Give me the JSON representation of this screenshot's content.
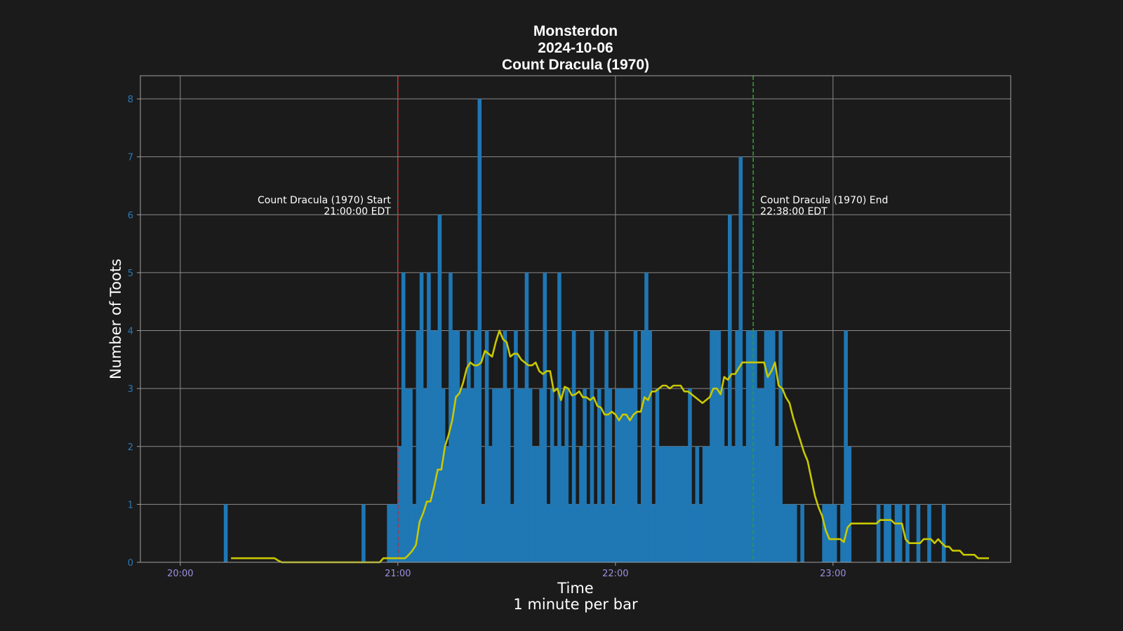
{
  "chart_data": {
    "type": "bar",
    "title": [
      "Monsterdon",
      "2024-10-06",
      "Count Dracula (1970)"
    ],
    "xlabel": "Time",
    "xlabel_sub": "1 minute per bar",
    "ylabel": "Number of Toots",
    "x_unit": "minute",
    "x_range": [
      "19:49",
      "23:49"
    ],
    "xlim_minutes": [
      -11,
      229
    ],
    "ylim": [
      0,
      8.4
    ],
    "x_ticks": [
      "20:00",
      "21:00",
      "22:00",
      "23:00"
    ],
    "y_ticks": [
      "0",
      "1",
      "2",
      "3",
      "4",
      "5",
      "6",
      "7",
      "8"
    ],
    "grid": true,
    "bars": {
      "start_time": "20:00",
      "values": [
        0,
        0,
        0,
        0,
        0,
        0,
        0,
        0,
        0,
        0,
        0,
        0,
        1,
        0,
        0,
        0,
        0,
        0,
        0,
        0,
        0,
        0,
        0,
        0,
        0,
        0,
        0,
        0,
        0,
        0,
        0,
        0,
        0,
        0,
        0,
        0,
        0,
        0,
        0,
        0,
        0,
        0,
        0,
        0,
        0,
        0,
        0,
        0,
        0,
        0,
        1,
        0,
        0,
        0,
        0,
        0,
        0,
        1,
        1,
        1,
        2,
        5,
        3,
        3,
        1,
        4,
        5,
        3,
        5,
        4,
        4,
        6,
        3,
        2,
        5,
        4,
        4,
        3,
        3,
        4,
        3,
        4,
        8,
        1,
        4,
        2,
        3,
        3,
        3,
        4,
        3,
        1,
        4,
        3,
        3,
        5,
        3,
        2,
        2,
        3,
        5,
        1,
        3,
        2,
        5,
        2,
        3,
        1,
        4,
        1,
        2,
        3,
        1,
        4,
        1,
        3,
        1,
        4,
        3,
        1,
        3,
        3,
        3,
        3,
        3,
        4,
        1,
        4,
        5,
        4,
        1,
        3,
        2,
        2,
        2,
        2,
        2,
        2,
        2,
        2,
        3,
        1,
        2,
        1,
        2,
        2,
        4,
        4,
        4,
        3,
        2,
        6,
        2,
        4,
        7,
        2,
        4,
        4,
        4,
        3,
        3,
        4,
        4,
        4,
        2,
        4,
        1,
        1,
        1,
        1,
        0,
        1,
        0,
        0,
        0,
        0,
        0,
        1,
        1,
        1,
        1,
        0,
        1,
        4,
        2,
        0,
        0,
        0,
        0,
        0,
        0,
        0,
        1,
        0,
        1,
        1,
        0,
        1,
        1,
        0,
        1,
        0,
        0,
        1,
        0,
        0,
        1,
        0,
        0,
        0,
        1,
        0,
        0,
        0,
        0,
        0,
        0,
        0,
        0,
        0,
        0,
        0,
        0,
        0,
        0,
        0,
        0,
        0,
        0
      ]
    },
    "rolling_average": {
      "color": "#c8c800",
      "start_time": "20:14",
      "values": [
        0.07,
        0.07,
        0.07,
        0.07,
        0.07,
        0.07,
        0.07,
        0.07,
        0.07,
        0.07,
        0.07,
        0.07,
        0.07,
        0.03,
        0,
        0,
        0,
        0,
        0,
        0,
        0,
        0,
        0,
        0,
        0,
        0,
        0,
        0,
        0,
        0,
        0,
        0,
        0,
        0,
        0,
        0,
        0,
        0,
        0,
        0,
        0,
        0,
        0.07,
        0.07,
        0.07,
        0.07,
        0.07,
        0.07,
        0.07,
        0.13,
        0.2,
        0.3,
        0.7,
        0.85,
        1.05,
        1.05,
        1.3,
        1.6,
        1.6,
        2,
        2.2,
        2.45,
        2.85,
        2.92,
        3.1,
        3.35,
        3.45,
        3.4,
        3.4,
        3.45,
        3.65,
        3.6,
        3.55,
        3.8,
        4,
        3.85,
        3.8,
        3.55,
        3.6,
        3.6,
        3.5,
        3.45,
        3.4,
        3.4,
        3.45,
        3.3,
        3.25,
        3.3,
        3.3,
        2.95,
        3,
        2.8,
        3.03,
        3,
        2.88,
        2.9,
        2.95,
        2.85,
        2.85,
        2.8,
        2.85,
        2.7,
        2.67,
        2.55,
        2.55,
        2.6,
        2.55,
        2.45,
        2.55,
        2.55,
        2.45,
        2.55,
        2.6,
        2.6,
        2.85,
        2.8,
        2.95,
        2.95,
        3,
        3.05,
        3.05,
        3,
        3.05,
        3.05,
        3.05,
        2.95,
        2.95,
        2.9,
        2.85,
        2.8,
        2.75,
        2.8,
        2.85,
        3,
        3,
        2.9,
        3.2,
        3.15,
        3.25,
        3.25,
        3.35,
        3.45,
        3.45,
        3.45,
        3.45,
        3.45,
        3.45,
        3.45,
        3.2,
        3.3,
        3.45,
        3.05,
        3,
        2.85,
        2.75,
        2.5,
        2.3,
        2.1,
        1.9,
        1.75,
        1.45,
        1.15,
        0.95,
        0.8,
        0.55,
        0.4,
        0.4,
        0.4,
        0.4,
        0.35,
        0.6,
        0.67,
        0.67,
        0.67,
        0.67,
        0.67,
        0.67,
        0.67,
        0.67,
        0.73,
        0.73,
        0.73,
        0.73,
        0.67,
        0.67,
        0.67,
        0.4,
        0.33,
        0.33,
        0.33,
        0.33,
        0.4,
        0.4,
        0.4,
        0.33,
        0.4,
        0.33,
        0.27,
        0.27,
        0.2,
        0.2,
        0.2,
        0.13,
        0.13,
        0.13,
        0.13,
        0.07,
        0.07,
        0.07,
        0.07
      ]
    },
    "bar_color": "#1f77b4",
    "annotations": [
      {
        "time": "21:00",
        "color": "#d62728",
        "label": "Count Dracula (1970) Start",
        "sublabel": "21:00:00 EDT"
      },
      {
        "time": "22:38",
        "color": "#2ca02c",
        "label": "Count Dracula (1970) End",
        "sublabel": "22:38:00 EDT"
      }
    ]
  }
}
